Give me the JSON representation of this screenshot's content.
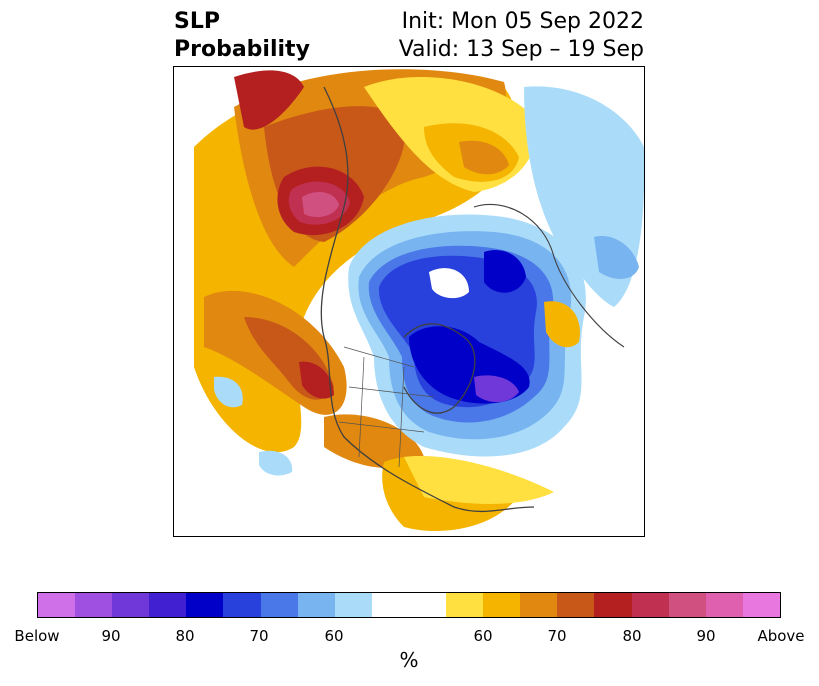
{
  "header": {
    "title_line1": "SLP",
    "title_line2": "Probability",
    "init": "Init: Mon 05 Sep 2022",
    "valid": "Valid: 13 Sep – 19 Sep"
  },
  "colorbar": {
    "unit_label": "%",
    "colors": [
      "#d070e8",
      "#a050e0",
      "#7038d8",
      "#4020d0",
      "#0000c8",
      "#2840dc",
      "#4a78e8",
      "#78b4f0",
      "#aadcfa",
      "#ffffff",
      "#ffffff",
      "#ffe040",
      "#f4b400",
      "#e08810",
      "#c85818",
      "#b42020",
      "#c03050",
      "#d05080",
      "#e060b0",
      "#e878e0"
    ],
    "tick_labels": [
      "Below",
      "90",
      "80",
      "70",
      "60",
      "60",
      "70",
      "80",
      "90",
      "Above"
    ]
  },
  "map": {
    "region": "Northern Hemisphere polar stereographic"
  }
}
